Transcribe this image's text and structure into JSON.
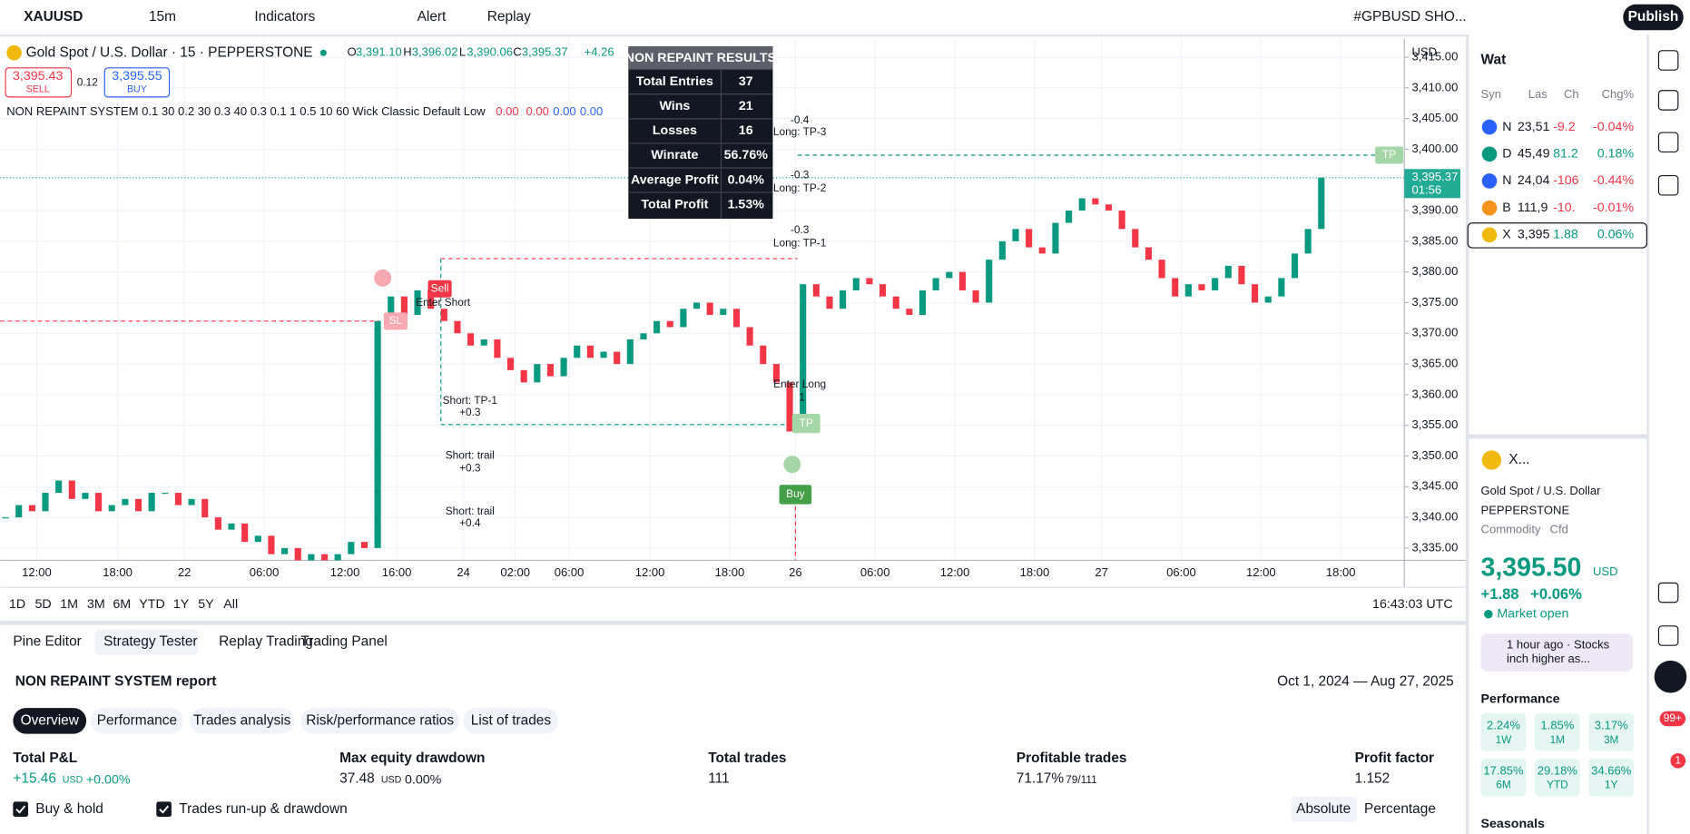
{
  "toolbar": {
    "symbol": "XAUUSD",
    "interval": "15m",
    "indicators": "Indicators",
    "alert": "Alert",
    "replay": "Replay",
    "watchlist_name": "#GPBUSD SHO...",
    "publish": "Publish"
  },
  "chart": {
    "title": "Gold Spot / U.S. Dollar · 15 · PEPPERSTONE",
    "ohlc": [
      "O",
      "3,391.10",
      "H",
      "3,396.02",
      "L",
      "3,390.06",
      "C",
      "3,395.37"
    ],
    "change": "+4.26",
    "sell_price": "3,395.43",
    "sell": "SELL",
    "spread": "0.12",
    "buy_price": "3,395.55",
    "buy": "BUY",
    "indicator": "NON REPAINT SYSTEM 0.1 30 0.2 30 0.3 40 0.3 0.1 1 0.5 10 60 Wick Classic Default Low",
    "indicator_values": [
      "0.00",
      "0.00",
      "0.00",
      "0.00"
    ]
  },
  "results": {
    "title": "NON REPAINT RESULTS",
    "rows": [
      [
        "Total Entries",
        "37"
      ],
      [
        "Wins",
        "21"
      ],
      [
        "Losses",
        "16"
      ],
      [
        "Winrate",
        "56.76%"
      ],
      [
        "Average Profit",
        "0.04%"
      ],
      [
        "Total Profit",
        "1.53%"
      ]
    ]
  },
  "annotations": [
    "-0.4",
    "Long: TP-3",
    "-0.3",
    "Long: TP-2",
    "-0.3",
    "Long: TP-1",
    "Sell",
    "Enter Short",
    "SL",
    "Short: TP-1",
    "+0.3",
    "Short: trail",
    "+0.3",
    "Short: trail",
    "+0.4",
    "Enter Long",
    "1",
    "TP",
    "Buy",
    "TP"
  ],
  "price_axis": {
    "currency": "USD",
    "ylim": [
      3333,
      3418
    ],
    "ticks": [
      {
        "value": 3335,
        "label": "3,335.00"
      },
      {
        "value": 3340,
        "label": "3,340.00"
      },
      {
        "value": 3345,
        "label": "3,345.00"
      },
      {
        "value": 3350,
        "label": "3,350.00"
      },
      {
        "value": 3355,
        "label": "3,355.00"
      },
      {
        "value": 3360,
        "label": "3,360.00"
      },
      {
        "value": 3365,
        "label": "3,365.00"
      },
      {
        "value": 3370,
        "label": "3,370.00"
      },
      {
        "value": 3375,
        "label": "3,375.00"
      },
      {
        "value": 3380,
        "label": "3,380.00"
      },
      {
        "value": 3385,
        "label": "3,385.00"
      },
      {
        "value": 3390,
        "label": "3,390.00"
      },
      {
        "value": 3400,
        "label": "3,400.00"
      },
      {
        "value": 3405,
        "label": "3,405.00"
      },
      {
        "value": 3410,
        "label": "3,410.00"
      },
      {
        "value": 3415,
        "label": "3,415.00"
      }
    ],
    "last": {
      "value": 3395.37,
      "label": "3,395.37"
    },
    "countdown": "01:56"
  },
  "price": {
    "closes": [
      3340,
      3342,
      3341,
      3344,
      3346,
      3343,
      3344,
      3341,
      3342,
      3343,
      3341,
      3344,
      3344,
      3342,
      3343,
      3340,
      3338,
      3339,
      3336,
      3337,
      3334,
      3335,
      3333,
      3334,
      3333,
      3334,
      3336,
      3335,
      3372,
      3376,
      3373,
      3377,
      3374,
      3372,
      3370,
      3368,
      3369,
      3366,
      3364,
      3362,
      3365,
      3363,
      3366,
      3368,
      3366,
      3367,
      3365,
      3369,
      3370,
      3372,
      3371,
      3374,
      3375,
      3373,
      3374,
      3371,
      3368,
      3365,
      3362,
      3354,
      3378,
      3376,
      3374,
      3377,
      3379,
      3378,
      3376,
      3374,
      3373,
      3377,
      3379,
      3380,
      3377,
      3375,
      3382,
      3385,
      3387,
      3384,
      3383,
      3388,
      3390,
      3392,
      3391,
      3390,
      3387,
      3384,
      3382,
      3379,
      3376,
      3378,
      3377,
      3379,
      3381,
      3378,
      3375,
      3376,
      3379,
      3383,
      3387,
      3395.37
    ]
  },
  "time_axis": [
    "12:00",
    "18:00",
    "22",
    "06:00",
    "12:00",
    "16:00",
    "24",
    "02:00",
    "06:00",
    "12:00",
    "18:00",
    "26",
    "06:00",
    "12:00",
    "18:00",
    "27",
    "06:00",
    "12:00",
    "18:00"
  ],
  "range_buttons": [
    "1D",
    "5D",
    "1M",
    "3M",
    "6M",
    "YTD",
    "1Y",
    "5Y",
    "All"
  ],
  "clock": "16:43:03 UTC",
  "panel": {
    "tabs": [
      "Pine Editor",
      "Strategy Tester",
      "Replay Trading",
      "Trading Panel"
    ],
    "report": "NON REPAINT SYSTEM report",
    "dates": "Oct 1, 2024 — Aug 27, 2025",
    "report_tabs": [
      "Overview",
      "Performance",
      "Trades analysis",
      "Risk/performance ratios",
      "List of trades"
    ],
    "metrics": [
      {
        "label": "Total P&L",
        "value": "+15.46",
        "unit": "USD",
        "extra": "+0.00%"
      },
      {
        "label": "Max equity drawdown",
        "value": "37.48",
        "unit": "USD",
        "extra": "0.00%"
      },
      {
        "label": "Total trades",
        "value": "111"
      },
      {
        "label": "Profitable trades",
        "value": "71.17%",
        "extra": "79/111"
      },
      {
        "label": "Profit factor",
        "value": "1.152"
      }
    ],
    "checks": [
      "Buy & hold",
      "Trades run-up & drawdown"
    ],
    "modes": [
      "Absolute",
      "Percentage"
    ]
  },
  "watchlist": {
    "title": "Wat",
    "columns": [
      "Syn",
      "Las",
      "Ch",
      "Chg%"
    ],
    "rows": [
      [
        "N",
        "23,51",
        "-9.2",
        "-0.04%"
      ],
      [
        "D",
        "45,49",
        "81.2",
        "0.18%"
      ],
      [
        "N",
        "24,04",
        "-106",
        "-0.44%"
      ],
      [
        "B",
        "111,9",
        "-10.",
        "-0.01%"
      ],
      [
        "X",
        "3,395",
        "1.88",
        "0.06%"
      ]
    ]
  },
  "details": {
    "symbol": "X...",
    "name": "Gold Spot / U.S. Dollar",
    "exchange": "PEPPERSTONE",
    "kind": "Commodity",
    "sub": "Cfd",
    "price": "3,395.50",
    "currency": "USD",
    "change": "+1.88",
    "change_pct": "+0.06%",
    "status": "Market open",
    "news": [
      "1 hour ago · Stocks",
      "inch higher as..."
    ],
    "performance_title": "Performance",
    "performance": [
      [
        "2.24%",
        "1W"
      ],
      [
        "1.85%",
        "1M"
      ],
      [
        "3.17%",
        "3M"
      ],
      [
        "17.85%",
        "6M"
      ],
      [
        "29.18%",
        "YTD"
      ],
      [
        "34.66%",
        "1Y"
      ]
    ],
    "seasonals": "Seasonals"
  },
  "badges": [
    "99+",
    "1"
  ]
}
